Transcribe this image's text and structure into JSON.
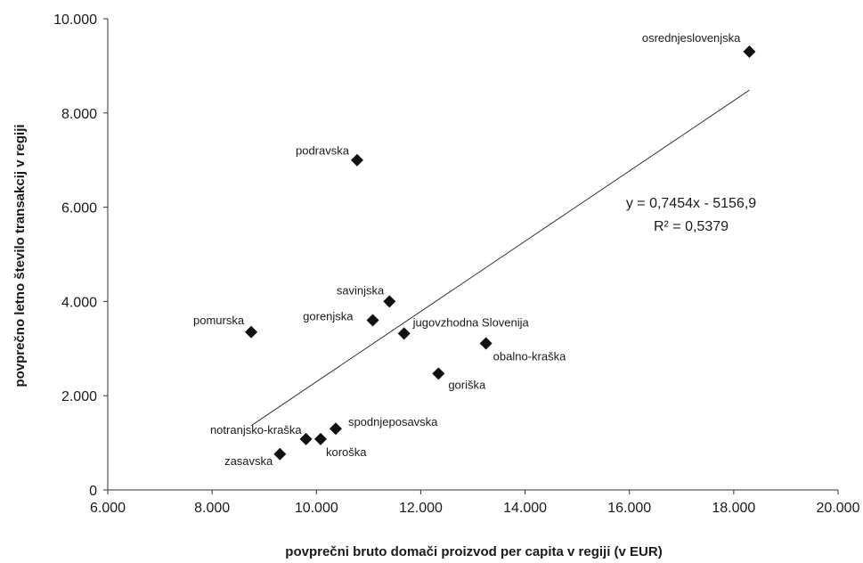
{
  "chart_data": {
    "type": "scatter",
    "xlabel": "povprečni bruto domači proizvod per capita v regiji (v EUR)",
    "ylabel": "povprečno letno število transakcij  v regiji",
    "xlim": [
      6000,
      20000
    ],
    "ylim": [
      0,
      10000
    ],
    "x_ticks": [
      "6.000",
      "8.000",
      "10.000",
      "12.000",
      "14.000",
      "16.000",
      "18.000",
      "20.000"
    ],
    "y_ticks": [
      "0",
      "2.000",
      "4.000",
      "6.000",
      "8.000",
      "10.000"
    ],
    "grid": false,
    "points": [
      {
        "label": "osrednjeslovenjska",
        "x": 18300,
        "y": 9300
      },
      {
        "label": "podravska",
        "x": 10780,
        "y": 7000
      },
      {
        "label": "savinjska",
        "x": 11400,
        "y": 4000
      },
      {
        "label": "gorenjska",
        "x": 11080,
        "y": 3600
      },
      {
        "label": "jugovzhodna Slovenija",
        "x": 11680,
        "y": 3320
      },
      {
        "label": "pomurska",
        "x": 8750,
        "y": 3350
      },
      {
        "label": "obalno-kraška",
        "x": 13250,
        "y": 3110
      },
      {
        "label": "goriška",
        "x": 12340,
        "y": 2470
      },
      {
        "label": "spodnjeposavska",
        "x": 10370,
        "y": 1300
      },
      {
        "label": "notranjsko-kraška",
        "x": 9800,
        "y": 1080
      },
      {
        "label": "koroška",
        "x": 10080,
        "y": 1080
      },
      {
        "label": "zasavska",
        "x": 9300,
        "y": 760
      }
    ],
    "trendline": {
      "slope": 0.7454,
      "intercept": -5156.9,
      "x_range": [
        8750,
        18300
      ],
      "equation": "y = 0,7454x - 5156,9",
      "r_squared": "R² = 0,5379"
    }
  }
}
